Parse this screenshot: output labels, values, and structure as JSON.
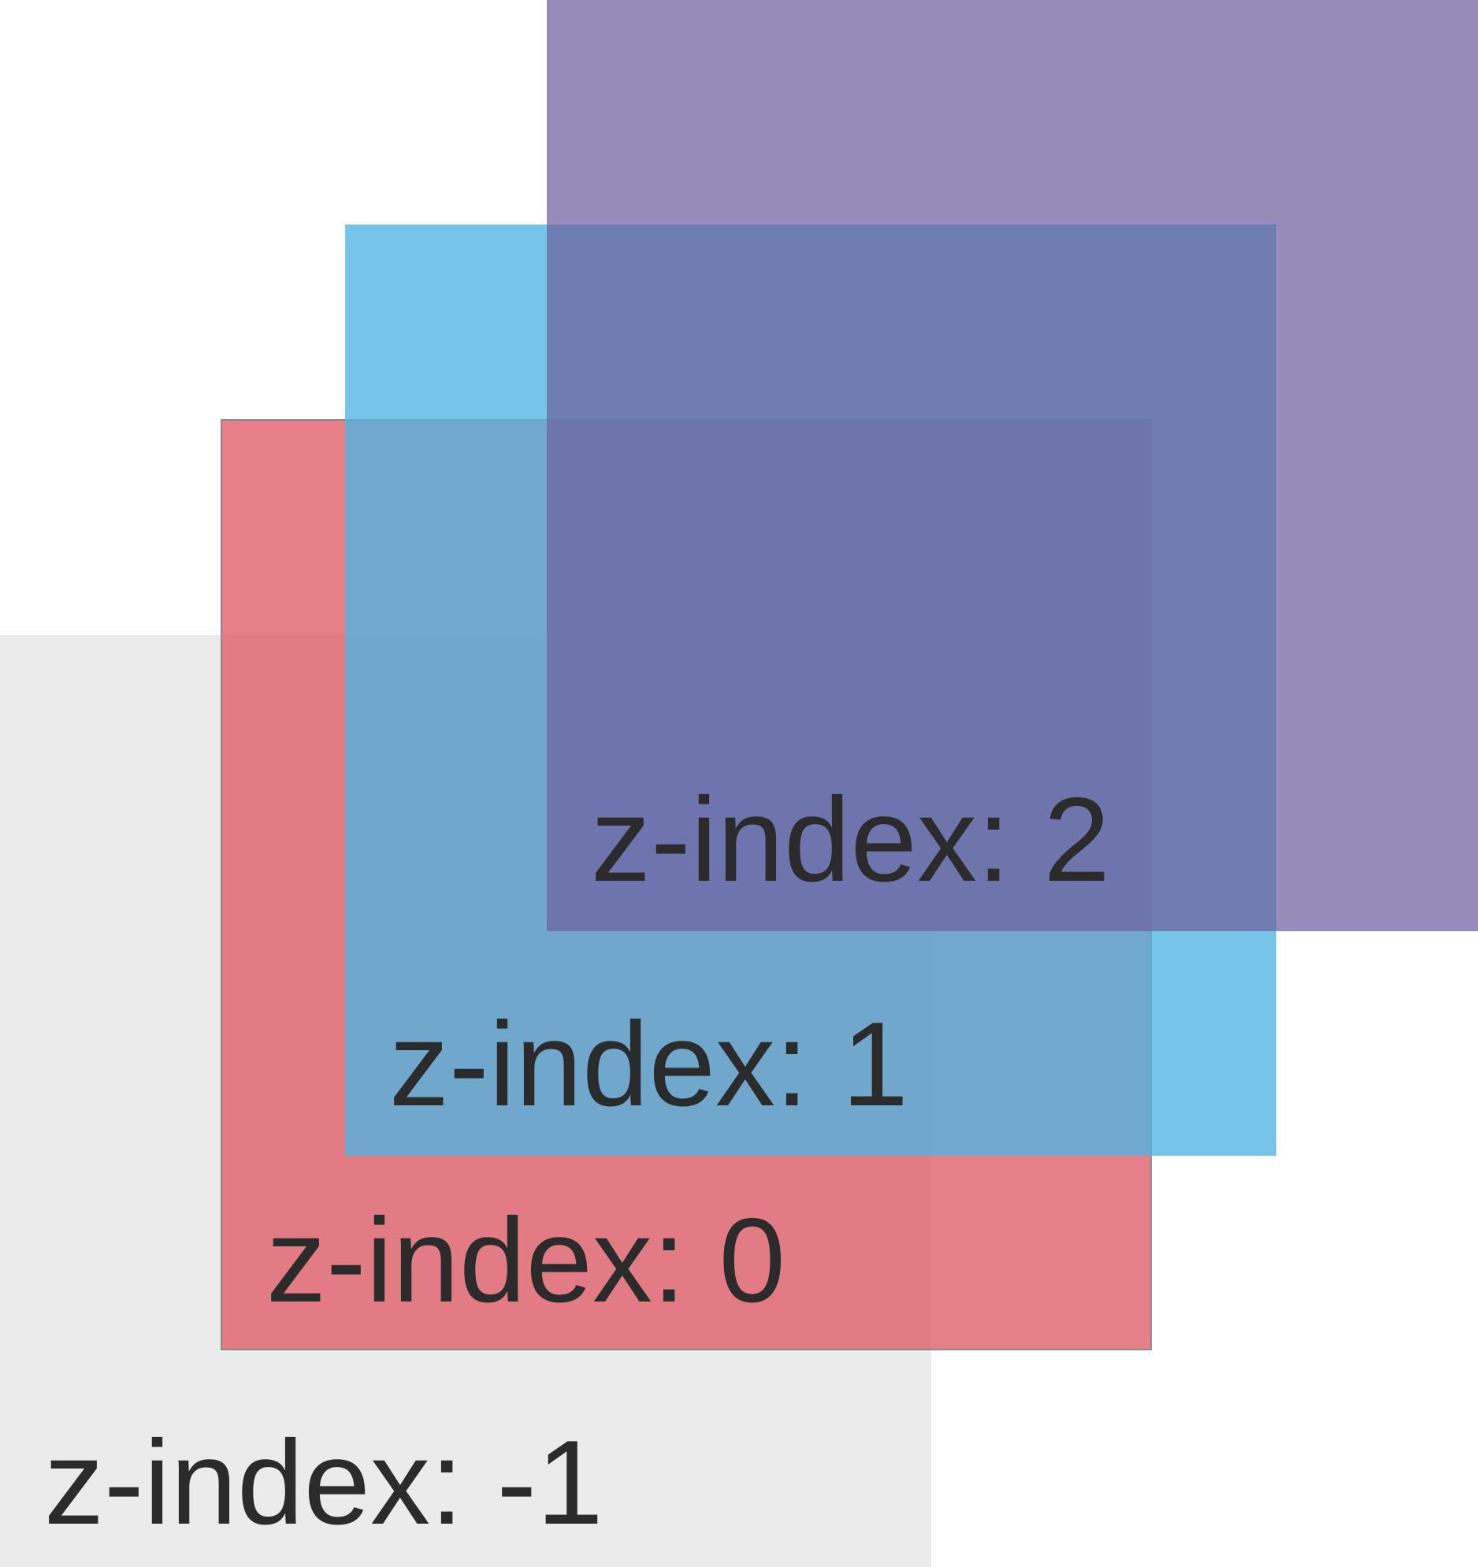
{
  "layers": [
    {
      "id": "neg1",
      "label": "z-index: -1",
      "z_index": -1,
      "color": "#ebebeb",
      "opacity": 1.0
    },
    {
      "id": "0",
      "label": "z-index: 0",
      "z_index": 0,
      "color": "#e06068",
      "opacity": 0.8
    },
    {
      "id": "1",
      "label": "z-index: 1",
      "z_index": 1,
      "color": "#4fb5e3",
      "opacity": 0.78
    },
    {
      "id": "2",
      "label": "z-index: 2",
      "z_index": 2,
      "color": "#6d62a0",
      "opacity": 0.73
    }
  ]
}
